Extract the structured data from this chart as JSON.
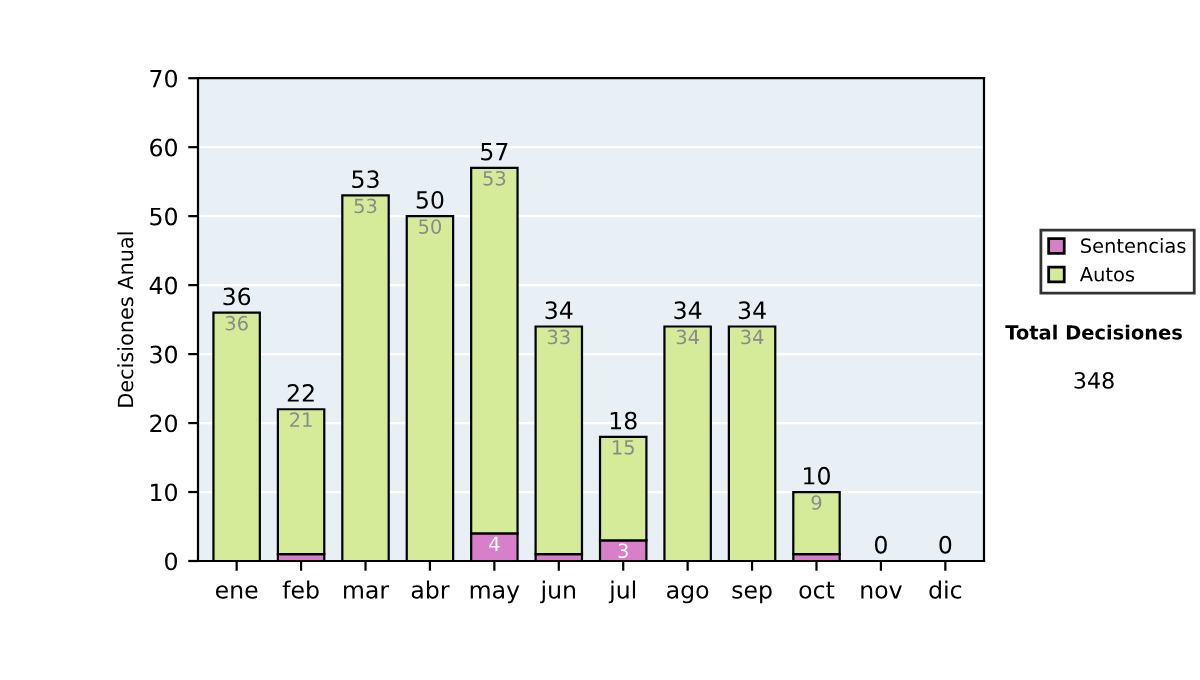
{
  "chart_data": {
    "type": "bar",
    "stacked": true,
    "ylabel": "Decisiones Anual",
    "categories": [
      "ene",
      "feb",
      "mar",
      "abr",
      "may",
      "jun",
      "jul",
      "ago",
      "sep",
      "oct",
      "nov",
      "dic"
    ],
    "series": [
      {
        "name": "Sentencias",
        "color": "#d77fc8",
        "values": [
          0,
          1,
          0,
          0,
          4,
          1,
          3,
          0,
          0,
          1,
          0,
          0
        ],
        "value_labels": [
          null,
          null,
          null,
          null,
          "4",
          null,
          "3",
          null,
          null,
          null,
          null,
          null
        ]
      },
      {
        "name": "Autos",
        "color": "#d5eb99",
        "values": [
          36,
          21,
          53,
          50,
          53,
          33,
          15,
          34,
          34,
          9,
          0,
          0
        ],
        "value_labels": [
          "36",
          "21",
          "53",
          "50",
          "53",
          "33",
          "15",
          "34",
          "34",
          "9",
          null,
          null
        ]
      }
    ],
    "totals": [
      "36",
      "22",
      "53",
      "50",
      "57",
      "34",
      "18",
      "34",
      "34",
      "10",
      "0",
      "0"
    ],
    "ylim": [
      0,
      70
    ],
    "yticks": [
      0,
      10,
      20,
      30,
      40,
      50,
      60,
      70
    ],
    "grid": "y",
    "legend": "right",
    "annotations": [
      "Total Decisiones",
      "348"
    ]
  }
}
